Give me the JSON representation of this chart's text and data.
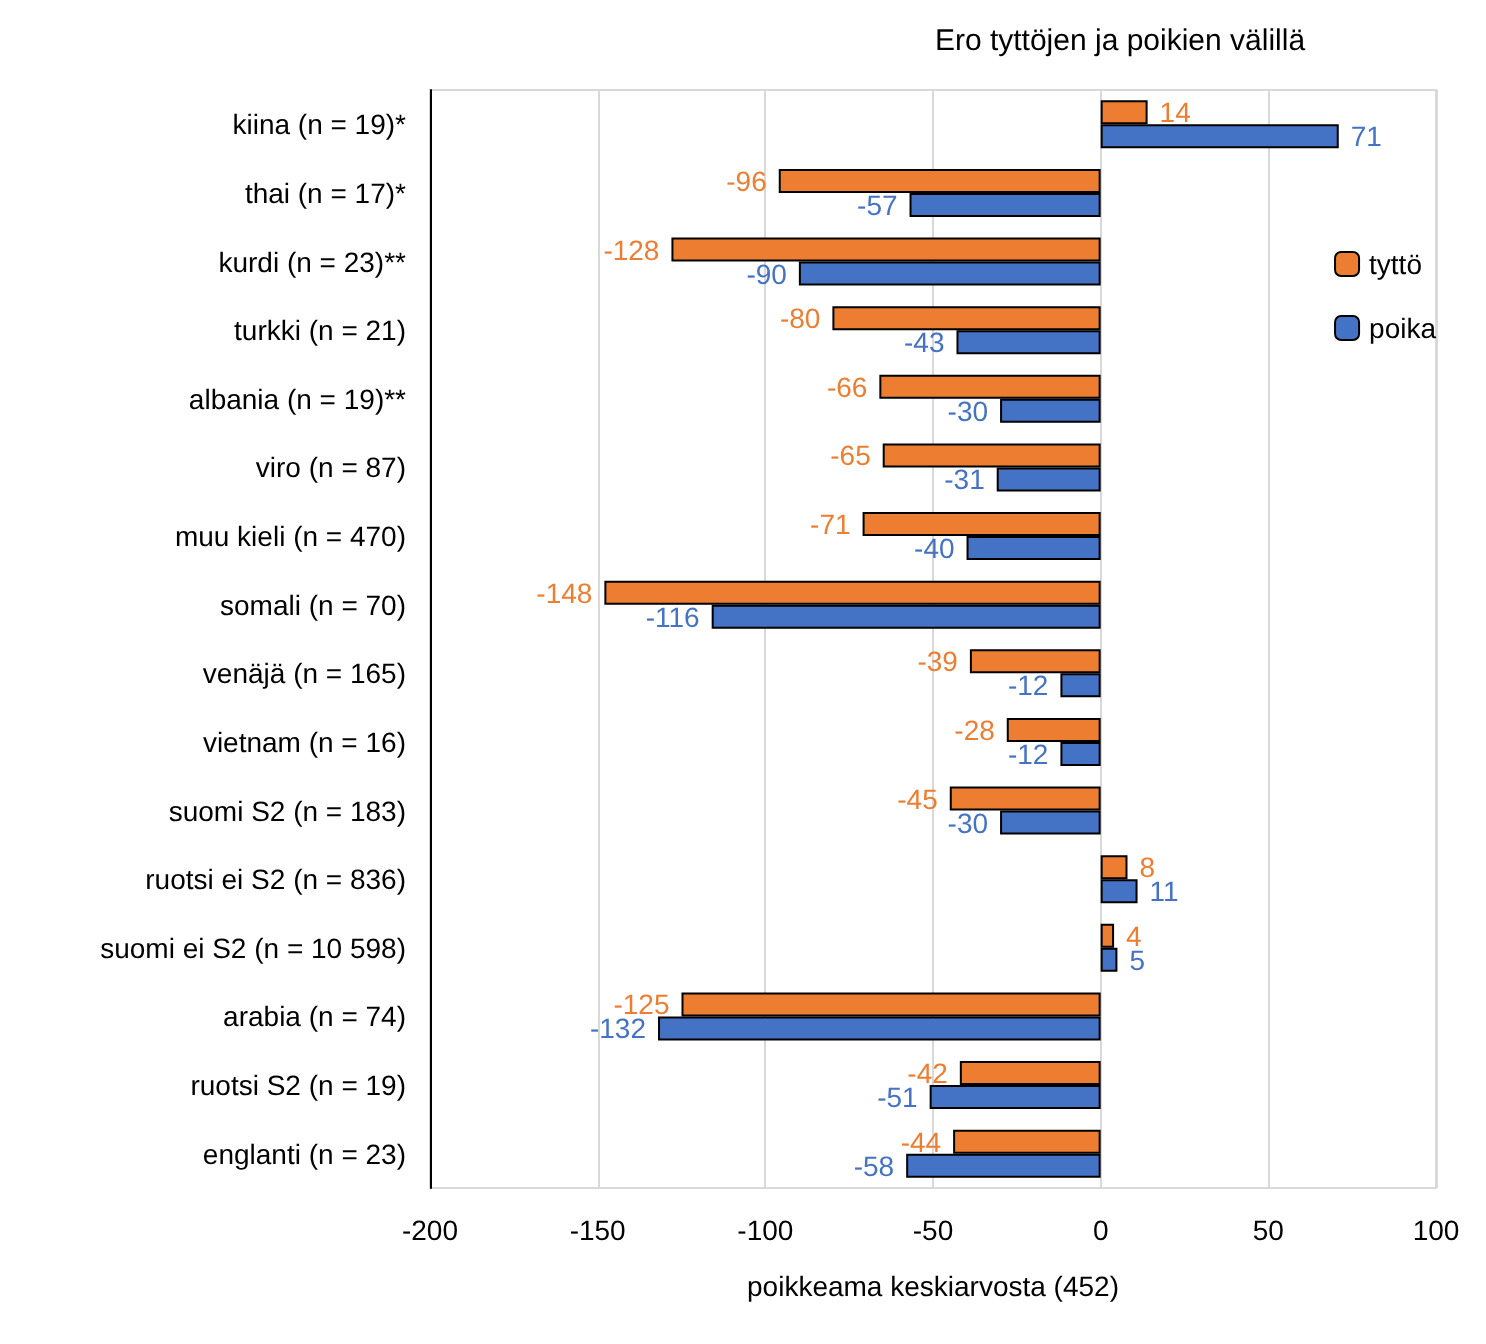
{
  "chart_data": {
    "type": "bar",
    "orientation": "horizontal",
    "title": "Ero tyttöjen ja poikien välillä",
    "xlabel": "poikkeama keskiarvosta (452)",
    "categories": [
      "kiina (n = 19)*",
      "thai (n = 17)*",
      "kurdi (n = 23)**",
      "turkki (n = 21)",
      "albania (n = 19)**",
      "viro (n = 87)",
      "muu kieli (n = 470)",
      "somali (n = 70)",
      "venäjä (n = 165)",
      "vietnam (n = 16)",
      "suomi S2 (n = 183)",
      "ruotsi ei S2 (n = 836)",
      "suomi ei S2 (n = 10 598)",
      "arabia (n = 74)",
      "ruotsi S2 (n = 19)",
      "englanti (n = 23)"
    ],
    "series": [
      {
        "name": "tyttö",
        "color": "#ed7d31",
        "values": [
          14,
          -96,
          -128,
          -80,
          -66,
          -65,
          -71,
          -148,
          -39,
          -28,
          -45,
          8,
          4,
          -125,
          -42,
          -44
        ]
      },
      {
        "name": "poika",
        "color": "#4472c4",
        "values": [
          71,
          -57,
          -90,
          -43,
          -30,
          -31,
          -40,
          -116,
          -12,
          -12,
          -30,
          11,
          5,
          -132,
          -51,
          -58
        ]
      }
    ],
    "xlim": [
      -200,
      100
    ],
    "xticks": [
      -200,
      -150,
      -100,
      -50,
      0,
      50,
      100
    ],
    "grid": "x",
    "legend": "right",
    "data_labels": true
  }
}
